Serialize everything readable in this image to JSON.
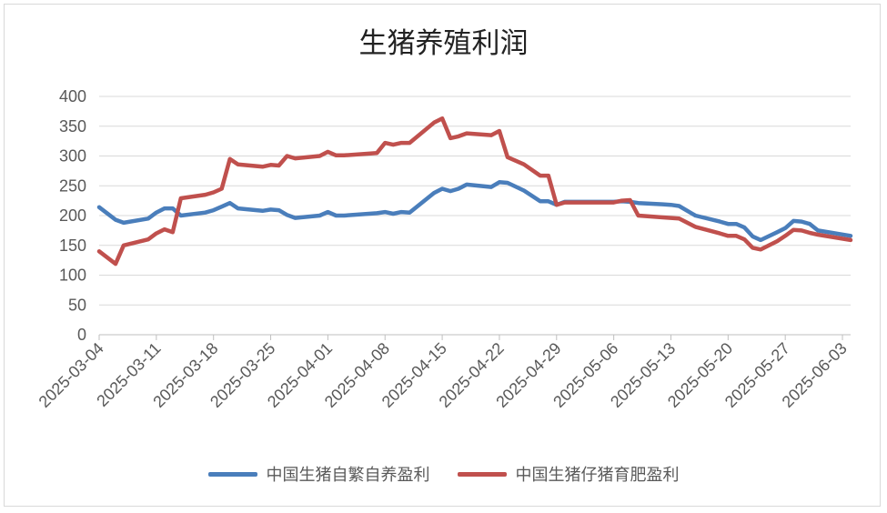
{
  "chart_data": {
    "type": "line",
    "title": "生猪养殖利润",
    "xlabel": "",
    "ylabel": "",
    "ylim": [
      0,
      400
    ],
    "yticks": [
      0,
      50,
      100,
      150,
      200,
      250,
      300,
      350,
      400
    ],
    "xlim": [
      "2025-03-04",
      "2025-06-04"
    ],
    "xtick_labels": [
      "2025-03-04",
      "2025-03-11",
      "2025-03-18",
      "2025-03-25",
      "2025-04-01",
      "2025-04-08",
      "2025-04-15",
      "2025-04-22",
      "2025-04-29",
      "2025-05-06",
      "2025-05-13",
      "2025-05-20",
      "2025-05-27",
      "2025-06-03"
    ],
    "grid": true,
    "legend_position": "bottom",
    "series": [
      {
        "name": "中国生猪自繁自养盈利",
        "color": "#4a7ebb",
        "points": [
          [
            "2025-03-04",
            214
          ],
          [
            "2025-03-06",
            193
          ],
          [
            "2025-03-07",
            188
          ],
          [
            "2025-03-10",
            195
          ],
          [
            "2025-03-11",
            205
          ],
          [
            "2025-03-12",
            212
          ],
          [
            "2025-03-13",
            212
          ],
          [
            "2025-03-14",
            200
          ],
          [
            "2025-03-17",
            205
          ],
          [
            "2025-03-18",
            209
          ],
          [
            "2025-03-19",
            215
          ],
          [
            "2025-03-20",
            221
          ],
          [
            "2025-03-21",
            212
          ],
          [
            "2025-03-24",
            208
          ],
          [
            "2025-03-25",
            210
          ],
          [
            "2025-03-26",
            209
          ],
          [
            "2025-03-27",
            201
          ],
          [
            "2025-03-28",
            196
          ],
          [
            "2025-03-31",
            200
          ],
          [
            "2025-04-01",
            206
          ],
          [
            "2025-04-02",
            200
          ],
          [
            "2025-04-03",
            200
          ],
          [
            "2025-04-07",
            204
          ],
          [
            "2025-04-08",
            206
          ],
          [
            "2025-04-09",
            203
          ],
          [
            "2025-04-10",
            206
          ],
          [
            "2025-04-11",
            205
          ],
          [
            "2025-04-14",
            238
          ],
          [
            "2025-04-15",
            245
          ],
          [
            "2025-04-16",
            241
          ],
          [
            "2025-04-17",
            245
          ],
          [
            "2025-04-18",
            252
          ],
          [
            "2025-04-21",
            248
          ],
          [
            "2025-04-22",
            256
          ],
          [
            "2025-04-23",
            255
          ],
          [
            "2025-04-25",
            242
          ],
          [
            "2025-04-27",
            224
          ],
          [
            "2025-04-28",
            224
          ],
          [
            "2025-04-29",
            218
          ],
          [
            "2025-04-30",
            223
          ],
          [
            "2025-05-06",
            223
          ],
          [
            "2025-05-07",
            224
          ],
          [
            "2025-05-08",
            223
          ],
          [
            "2025-05-09",
            221
          ],
          [
            "2025-05-12",
            219
          ],
          [
            "2025-05-13",
            218
          ],
          [
            "2025-05-14",
            216
          ],
          [
            "2025-05-16",
            200
          ],
          [
            "2025-05-19",
            190
          ],
          [
            "2025-05-20",
            186
          ],
          [
            "2025-05-21",
            186
          ],
          [
            "2025-05-22",
            180
          ],
          [
            "2025-05-23",
            165
          ],
          [
            "2025-05-24",
            159
          ],
          [
            "2025-05-26",
            172
          ],
          [
            "2025-05-27",
            179
          ],
          [
            "2025-05-28",
            191
          ],
          [
            "2025-05-29",
            190
          ],
          [
            "2025-05-30",
            186
          ],
          [
            "2025-05-31",
            175
          ],
          [
            "2025-06-04",
            166
          ]
        ]
      },
      {
        "name": "中国生猪仔猪育肥盈利",
        "color": "#c0504d",
        "points": [
          [
            "2025-03-04",
            140
          ],
          [
            "2025-03-06",
            119
          ],
          [
            "2025-03-07",
            150
          ],
          [
            "2025-03-10",
            160
          ],
          [
            "2025-03-11",
            170
          ],
          [
            "2025-03-12",
            177
          ],
          [
            "2025-03-13",
            172
          ],
          [
            "2025-03-14",
            229
          ],
          [
            "2025-03-17",
            235
          ],
          [
            "2025-03-18",
            239
          ],
          [
            "2025-03-19",
            245
          ],
          [
            "2025-03-20",
            295
          ],
          [
            "2025-03-21",
            286
          ],
          [
            "2025-03-24",
            282
          ],
          [
            "2025-03-25",
            285
          ],
          [
            "2025-03-26",
            284
          ],
          [
            "2025-03-27",
            300
          ],
          [
            "2025-03-28",
            296
          ],
          [
            "2025-03-31",
            300
          ],
          [
            "2025-04-01",
            307
          ],
          [
            "2025-04-02",
            301
          ],
          [
            "2025-04-03",
            301
          ],
          [
            "2025-04-07",
            305
          ],
          [
            "2025-04-08",
            322
          ],
          [
            "2025-04-09",
            319
          ],
          [
            "2025-04-10",
            322
          ],
          [
            "2025-04-11",
            322
          ],
          [
            "2025-04-14",
            356
          ],
          [
            "2025-04-15",
            363
          ],
          [
            "2025-04-16",
            330
          ],
          [
            "2025-04-17",
            333
          ],
          [
            "2025-04-18",
            338
          ],
          [
            "2025-04-21",
            335
          ],
          [
            "2025-04-22",
            342
          ],
          [
            "2025-04-23",
            298
          ],
          [
            "2025-04-25",
            286
          ],
          [
            "2025-04-27",
            267
          ],
          [
            "2025-04-28",
            267
          ],
          [
            "2025-04-29",
            218
          ],
          [
            "2025-04-30",
            222
          ],
          [
            "2025-05-06",
            222
          ],
          [
            "2025-05-07",
            225
          ],
          [
            "2025-05-08",
            226
          ],
          [
            "2025-05-09",
            200
          ],
          [
            "2025-05-12",
            197
          ],
          [
            "2025-05-13",
            196
          ],
          [
            "2025-05-14",
            195
          ],
          [
            "2025-05-16",
            181
          ],
          [
            "2025-05-19",
            170
          ],
          [
            "2025-05-20",
            166
          ],
          [
            "2025-05-21",
            166
          ],
          [
            "2025-05-22",
            160
          ],
          [
            "2025-05-23",
            146
          ],
          [
            "2025-05-24",
            143
          ],
          [
            "2025-05-26",
            157
          ],
          [
            "2025-05-27",
            166
          ],
          [
            "2025-05-28",
            176
          ],
          [
            "2025-05-29",
            175
          ],
          [
            "2025-05-30",
            171
          ],
          [
            "2025-05-31",
            168
          ],
          [
            "2025-06-04",
            159
          ]
        ]
      }
    ]
  }
}
